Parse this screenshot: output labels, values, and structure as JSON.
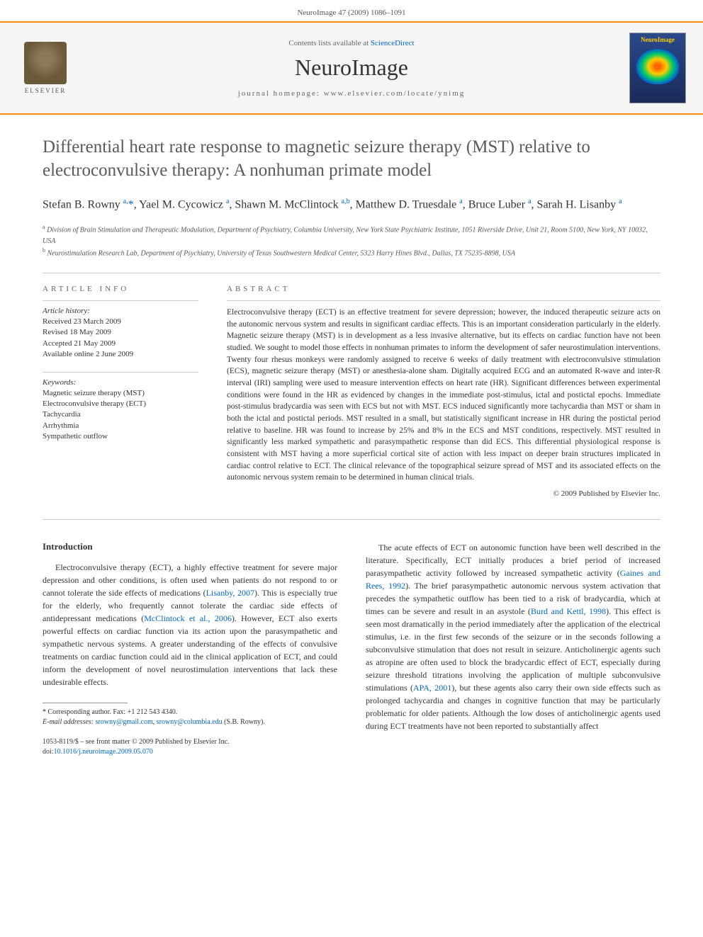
{
  "page_header": "NeuroImage 47 (2009) 1086–1091",
  "banner": {
    "contents_prefix": "Contents lists available at ",
    "contents_link": "ScienceDirect",
    "journal_name": "NeuroImage",
    "homepage_prefix": "journal homepage: ",
    "homepage_url": "www.elsevier.com/locate/ynimg",
    "publisher_label": "ELSEVIER",
    "cover_title": "NeuroImage"
  },
  "article": {
    "title": "Differential heart rate response to magnetic seizure therapy (MST) relative to electroconvulsive therapy: A nonhuman primate model",
    "authors_html": "Stefan B. Rowny <span class='sup'>a,</span><span class='star'>*</span>, Yael M. Cycowicz <span class='sup'>a</span>, Shawn M. McClintock <span class='sup'>a,b</span>, Matthew D. Truesdale <span class='sup'>a</span>, Bruce Luber <span class='sup'>a</span>, Sarah H. Lisanby <span class='sup'>a</span>",
    "affiliations": [
      {
        "sup": "a",
        "text": "Division of Brain Stimulation and Therapeutic Modulation, Department of Psychiatry, Columbia University, New York State Psychiatric Institute, 1051 Riverside Drive, Unit 21, Room 5100, New York, NY 10032, USA"
      },
      {
        "sup": "b",
        "text": "Neurostimulation Research Lab, Department of Psychiatry, University of Texas Southwestern Medical Center, 5323 Harry Hines Blvd., Dallas, TX 75235-8898, USA"
      }
    ]
  },
  "info": {
    "heading": "ARTICLE INFO",
    "history_label": "Article history:",
    "history": [
      "Received 23 March 2009",
      "Revised 18 May 2009",
      "Accepted 21 May 2009",
      "Available online 2 June 2009"
    ],
    "keywords_label": "Keywords:",
    "keywords": [
      "Magnetic seizure therapy (MST)",
      "Electroconvulsive therapy (ECT)",
      "Tachycardia",
      "Arrhythmia",
      "Sympathetic outflow"
    ]
  },
  "abstract": {
    "heading": "ABSTRACT",
    "text": "Electroconvulsive therapy (ECT) is an effective treatment for severe depression; however, the induced therapeutic seizure acts on the autonomic nervous system and results in significant cardiac effects. This is an important consideration particularly in the elderly. Magnetic seizure therapy (MST) is in development as a less invasive alternative, but its effects on cardiac function have not been studied. We sought to model those effects in nonhuman primates to inform the development of safer neurostimulation interventions. Twenty four rhesus monkeys were randomly assigned to receive 6 weeks of daily treatment with electroconvulsive stimulation (ECS), magnetic seizure therapy (MST) or anesthesia-alone sham. Digitally acquired ECG and an automated R-wave and inter-R interval (IRI) sampling were used to measure intervention effects on heart rate (HR). Significant differences between experimental conditions were found in the HR as evidenced by changes in the immediate post-stimulus, ictal and postictal epochs. Immediate post-stimulus bradycardia was seen with ECS but not with MST. ECS induced significantly more tachycardia than MST or sham in both the ictal and postictal periods. MST resulted in a small, but statistically significant increase in HR during the postictal period relative to baseline. HR was found to increase by 25% and 8% in the ECS and MST conditions, respectively. MST resulted in significantly less marked sympathetic and parasympathetic response than did ECS. This differential physiological response is consistent with MST having a more superficial cortical site of action with less impact on deeper brain structures implicated in cardiac control relative to ECT. The clinical relevance of the topographical seizure spread of MST and its associated effects on the autonomic nervous system remain to be determined in human clinical trials.",
    "copyright": "© 2009 Published by Elsevier Inc."
  },
  "intro": {
    "heading": "Introduction",
    "col1": "Electroconvulsive therapy (ECT), a highly effective treatment for severe major depression and other conditions, is often used when patients do not respond to or cannot tolerate the side effects of medications (<a href='#'>Lisanby, 2007</a>). This is especially true for the elderly, who frequently cannot tolerate the cardiac side effects of antidepressant medications (<a href='#'>McClintock et al., 2006</a>). However, ECT also exerts powerful effects on cardiac function via its action upon the parasympathetic and sympathetic nervous systems. A greater understanding of the effects of convulsive treatments on cardiac function could aid in the clinical application of ECT, and could inform the development of novel neurostimulation interventions that lack these undesirable effects.",
    "col2": "The acute effects of ECT on autonomic function have been well described in the literature. Specifically, ECT initially produces a brief period of increased parasympathetic activity followed by increased sympathetic activity (<a href='#'>Gaines and Rees, 1992</a>). The brief parasympathetic autonomic nervous system activation that precedes the sympathetic outflow has been tied to a risk of bradycardia, which at times can be severe and result in an asystole (<a href='#'>Burd and Kettl, 1998</a>). This effect is seen most dramatically in the period immediately after the application of the electrical stimulus, i.e. in the first few seconds of the seizure or in the seconds following a subconvulsive stimulation that does not result in seizure. Anticholinergic agents such as atropine are often used to block the bradycardic effect of ECT, especially during seizure threshold titrations involving the application of multiple subconvulsive stimulations (<a href='#'>APA, 2001</a>), but these agents also carry their own side effects such as prolonged tachycardia and changes in cognitive function that may be particularly problematic for older patients. Although the low doses of anticholinergic agents used during ECT treatments have not been reported to substantially affect"
  },
  "footnote": {
    "corr_label": "* Corresponding author. Fax: +1 212 543 4340.",
    "email_label": "E-mail addresses:",
    "email1": "srowny@gmail.com",
    "email2": "srowny@columbia.edu",
    "email_suffix": "(S.B. Rowny)."
  },
  "footer": {
    "line1": "1053-8119/$ – see front matter © 2009 Published by Elsevier Inc.",
    "doi_prefix": "doi:",
    "doi": "10.1016/j.neuroimage.2009.05.070"
  },
  "colors": {
    "accent_orange": "#ff8c00",
    "link_blue": "#0066cc",
    "text_gray": "#5a5a5a",
    "body_text": "#333333"
  }
}
